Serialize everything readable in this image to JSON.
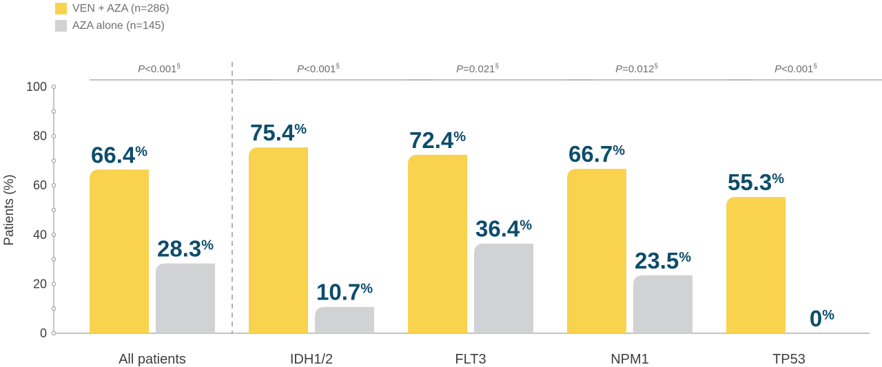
{
  "chart_data": {
    "type": "bar",
    "ylabel": "Patients (%)",
    "ylim": [
      0,
      100
    ],
    "yticks": [
      "0",
      "20",
      "40",
      "60",
      "80",
      "100"
    ],
    "categories": [
      "All patients",
      "IDH1/2",
      "FLT3",
      "NPM1",
      "TP53"
    ],
    "series": [
      {
        "name": "VEN + AZA (n=286)",
        "color": "#f9d24e",
        "values": [
          66.4,
          75.4,
          72.4,
          66.7,
          55.3
        ],
        "labels": [
          "66.4",
          "75.4",
          "72.4",
          "66.7",
          "55.3"
        ]
      },
      {
        "name": "AZA alone (n=145)",
        "color": "#d1d2d4",
        "values": [
          28.3,
          10.7,
          36.4,
          23.5,
          0
        ],
        "labels": [
          "28.3",
          "10.7",
          "36.4",
          "23.5",
          "0"
        ]
      }
    ],
    "percent_sign": "%",
    "p_values": [
      {
        "letter": "P",
        "rest": "<0.001",
        "mark": "§"
      },
      {
        "letter": "P",
        "rest": "<0.001",
        "mark": "§"
      },
      {
        "letter": "P",
        "rest": "=0.021",
        "mark": "§"
      },
      {
        "letter": "P",
        "rest": "=0.012",
        "mark": "§"
      },
      {
        "letter": "P",
        "rest": "<0.001",
        "mark": "§"
      }
    ],
    "legend_position": "top-left",
    "grid": false,
    "divider_after_category": 0
  }
}
